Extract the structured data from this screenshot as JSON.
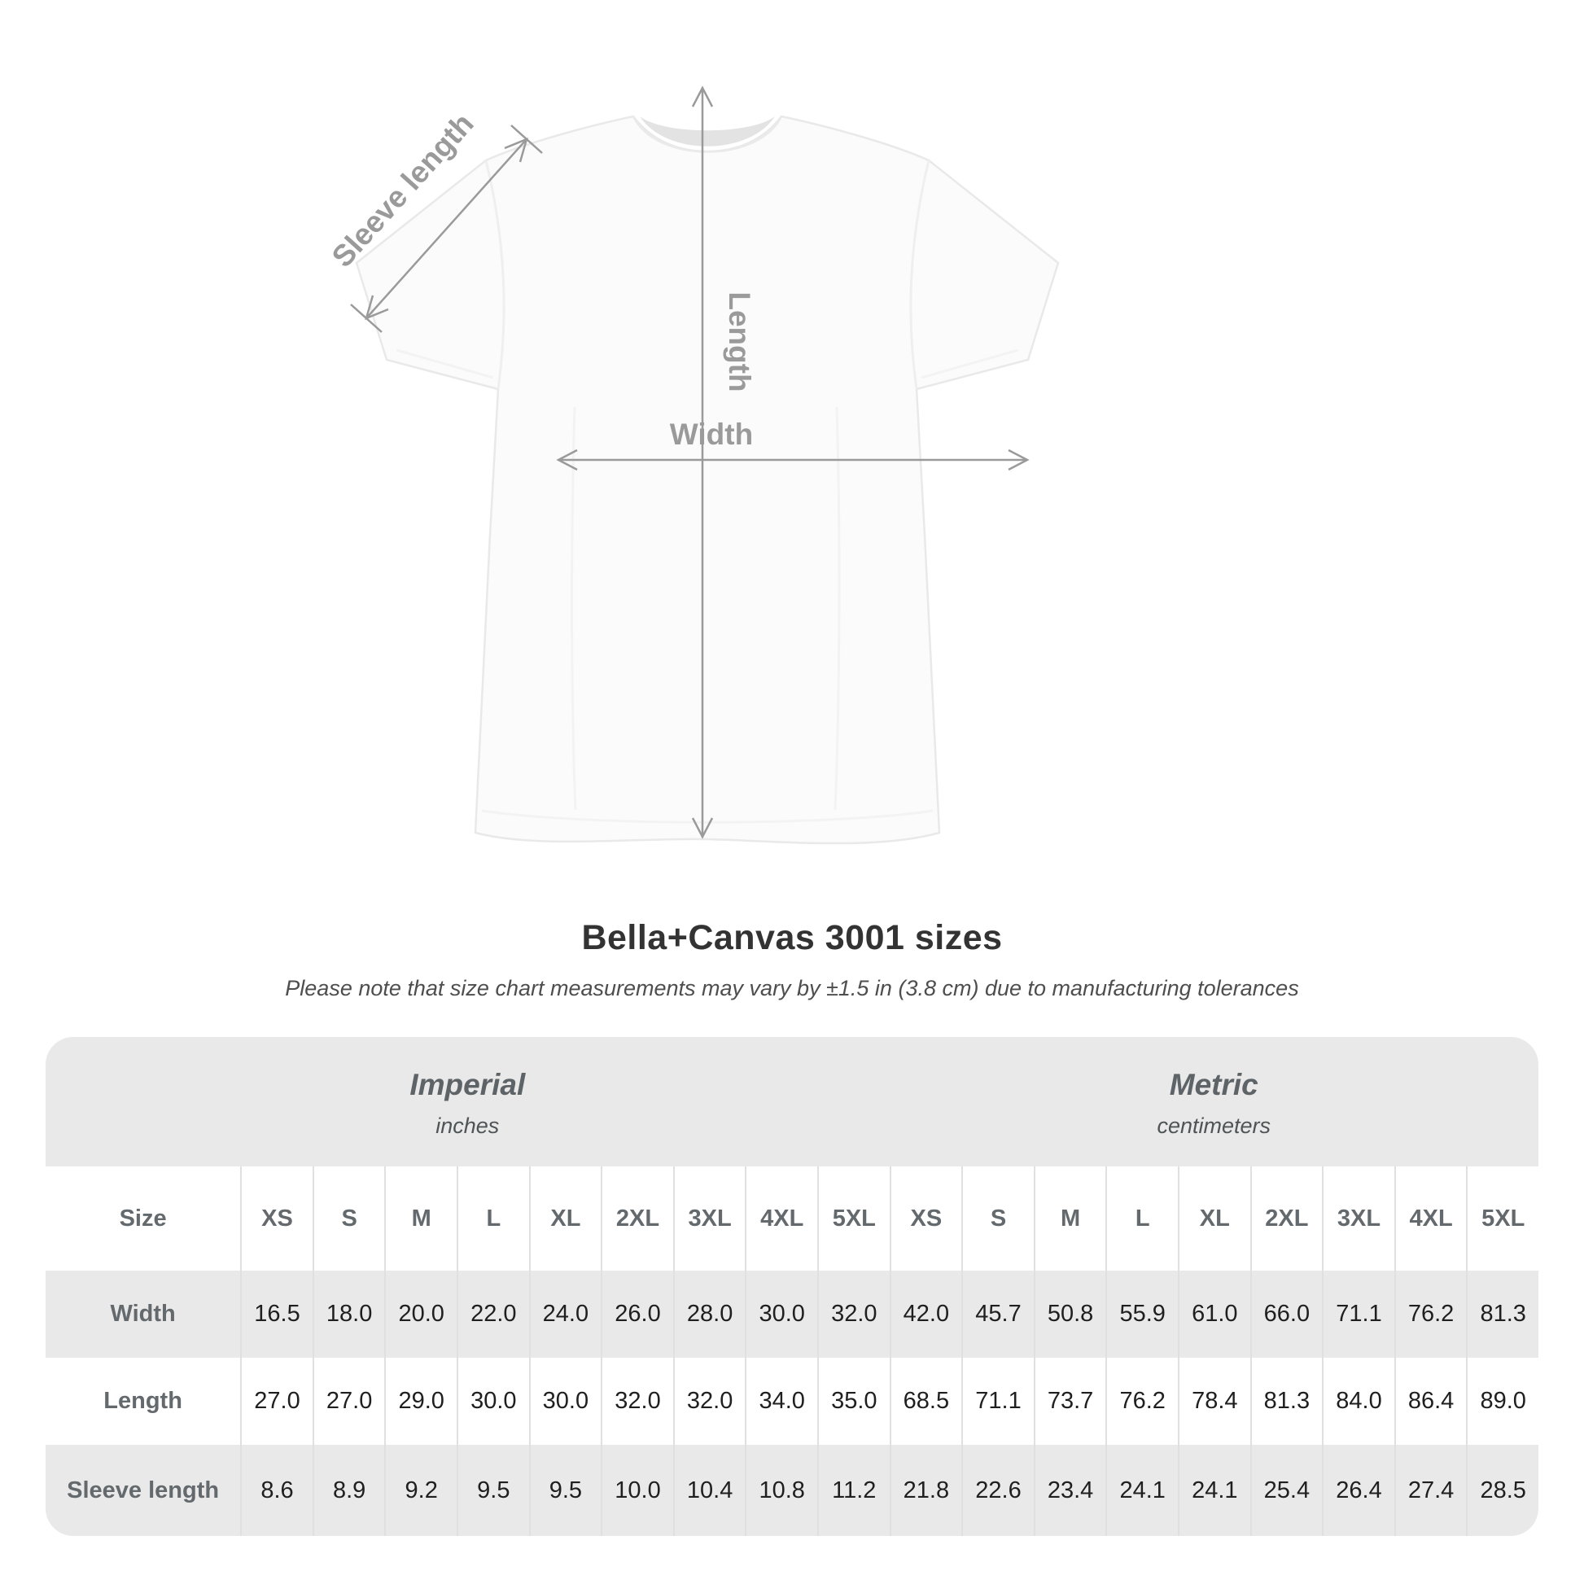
{
  "diagram": {
    "labels": {
      "sleeve_length": "Sleeve length",
      "length": "Length",
      "width": "Width"
    },
    "annotation_color": "#9a9a9a"
  },
  "header": {
    "title": "Bella+Canvas 3001 sizes",
    "subtitle": "Please note that size chart measurements may vary by ±1.5 in (3.8 cm) due to manufacturing tolerances"
  },
  "table": {
    "unit_groups": [
      {
        "name": "Imperial",
        "unit": "inches"
      },
      {
        "name": "Metric",
        "unit": "centimeters"
      }
    ],
    "size_col_header": "Size",
    "sizes": [
      "XS",
      "S",
      "M",
      "L",
      "XL",
      "2XL",
      "3XL",
      "4XL",
      "5XL"
    ],
    "rows": [
      {
        "label": "Width",
        "imperial": [
          "16.5",
          "18.0",
          "20.0",
          "22.0",
          "24.0",
          "26.0",
          "28.0",
          "30.0",
          "32.0"
        ],
        "metric": [
          "42.0",
          "45.7",
          "50.8",
          "55.9",
          "61.0",
          "66.0",
          "71.1",
          "76.2",
          "81.3"
        ]
      },
      {
        "label": "Length",
        "imperial": [
          "27.0",
          "27.0",
          "29.0",
          "30.0",
          "30.0",
          "32.0",
          "32.0",
          "34.0",
          "35.0"
        ],
        "metric": [
          "68.5",
          "71.1",
          "73.7",
          "76.2",
          "78.4",
          "81.3",
          "84.0",
          "86.4",
          "89.0"
        ]
      },
      {
        "label": "Sleeve length",
        "imperial": [
          "8.6",
          "8.9",
          "9.2",
          "9.5",
          "9.5",
          "10.0",
          "10.4",
          "10.8",
          "11.2"
        ],
        "metric": [
          "21.8",
          "22.6",
          "23.4",
          "24.1",
          "24.1",
          "25.4",
          "26.4",
          "27.4",
          "28.5"
        ]
      }
    ],
    "colors": {
      "band_gray": "#e9e9e9",
      "separator": "#e0e0e0",
      "header_text": "#63696c",
      "value_text": "#1f1f1f"
    }
  },
  "chart_data": {
    "type": "table",
    "title": "Bella+Canvas 3001 sizes",
    "note": "Please note that size chart measurements may vary by ±1.5 in (3.8 cm) due to manufacturing tolerances",
    "column_groups": [
      "Imperial (inches)",
      "Metric (centimeters)"
    ],
    "categories": [
      "XS",
      "S",
      "M",
      "L",
      "XL",
      "2XL",
      "3XL",
      "4XL",
      "5XL"
    ],
    "series": [
      {
        "name": "Width (in)",
        "values": [
          16.5,
          18.0,
          20.0,
          22.0,
          24.0,
          26.0,
          28.0,
          30.0,
          32.0
        ]
      },
      {
        "name": "Length (in)",
        "values": [
          27.0,
          27.0,
          29.0,
          30.0,
          30.0,
          32.0,
          32.0,
          34.0,
          35.0
        ]
      },
      {
        "name": "Sleeve length (in)",
        "values": [
          8.6,
          8.9,
          9.2,
          9.5,
          9.5,
          10.0,
          10.4,
          10.8,
          11.2
        ]
      },
      {
        "name": "Width (cm)",
        "values": [
          42.0,
          45.7,
          50.8,
          55.9,
          61.0,
          66.0,
          71.1,
          76.2,
          81.3
        ]
      },
      {
        "name": "Length (cm)",
        "values": [
          68.5,
          71.1,
          73.7,
          76.2,
          78.4,
          81.3,
          84.0,
          86.4,
          89.0
        ]
      },
      {
        "name": "Sleeve length (cm)",
        "values": [
          21.8,
          22.6,
          23.4,
          24.1,
          24.1,
          25.4,
          26.4,
          27.4,
          28.5
        ]
      }
    ]
  }
}
